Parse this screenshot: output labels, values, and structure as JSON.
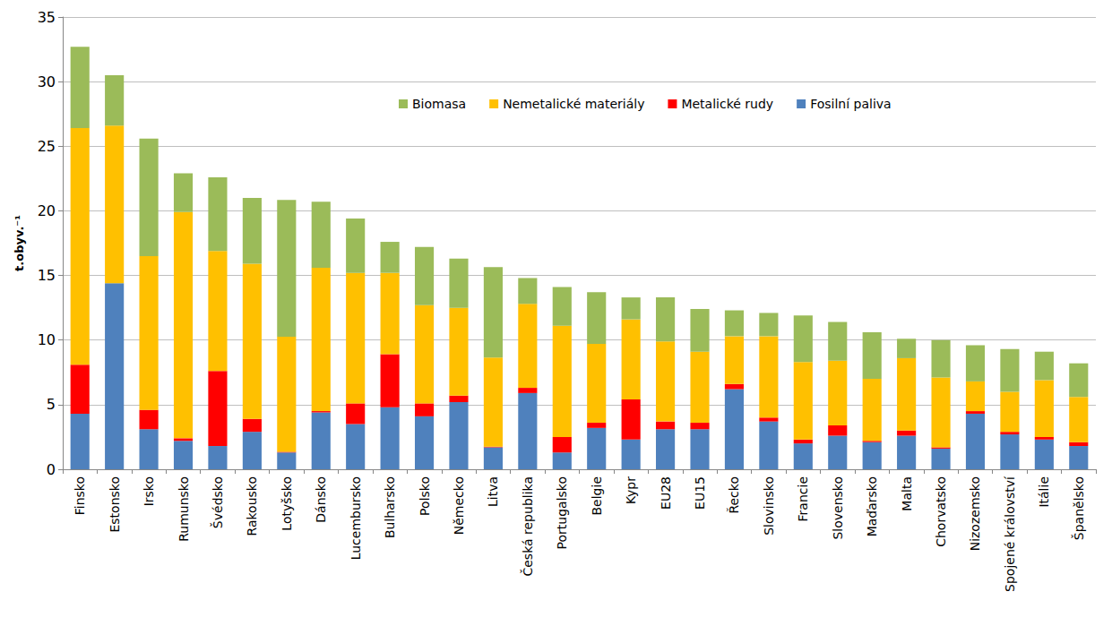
{
  "chart_data": {
    "type": "bar",
    "stacked": true,
    "grid": true,
    "legend": "top",
    "y_label": "t.obyv.⁻¹",
    "ylim": [
      0,
      35
    ],
    "yticks": [
      0,
      5,
      10,
      15,
      20,
      25,
      30,
      35
    ],
    "categories": [
      "Finsko",
      "Estonsko",
      "Irsko",
      "Rumunsko",
      "Švédsko",
      "Rakousko",
      "Lotyšsko",
      "Dánsko",
      "Lucembursko",
      "Bulharsko",
      "Polsko",
      "Německo",
      "Litva",
      "Česká republika",
      "Portugalsko",
      "Belgie",
      "Kypr",
      "EU28",
      "EU15",
      "Řecko",
      "Slovinsko",
      "Francie",
      "Slovensko",
      "Maďarsko",
      "Malta",
      "Chorvatsko",
      "Nizozemsko",
      "Spojené království",
      "Itálie",
      "Španělsko"
    ],
    "series": [
      {
        "name": "Fosilní paliva",
        "color": "#4f81bd",
        "values": [
          4.3,
          14.4,
          3.1,
          2.2,
          1.8,
          2.9,
          1.3,
          4.4,
          3.5,
          4.8,
          4.1,
          5.2,
          1.7,
          5.9,
          1.3,
          3.2,
          2.3,
          3.1,
          3.1,
          6.2,
          3.7,
          2.0,
          2.6,
          2.1,
          2.6,
          1.6,
          4.3,
          2.7,
          2.3,
          1.8
        ]
      },
      {
        "name": "Metalické rudy",
        "color": "#ff0000",
        "values": [
          3.8,
          0.0,
          1.5,
          0.2,
          5.8,
          1.0,
          0.05,
          0.1,
          1.6,
          4.1,
          1.0,
          0.5,
          0.05,
          0.4,
          1.2,
          0.4,
          3.1,
          0.6,
          0.5,
          0.4,
          0.3,
          0.3,
          0.8,
          0.1,
          0.4,
          0.1,
          0.2,
          0.2,
          0.2,
          0.3
        ]
      },
      {
        "name": "Nemetalické materiály",
        "color": "#ffc000",
        "values": [
          18.3,
          12.2,
          11.9,
          17.5,
          9.3,
          12.0,
          8.9,
          11.1,
          10.1,
          6.3,
          7.6,
          6.8,
          6.9,
          6.5,
          8.6,
          6.1,
          6.2,
          6.2,
          5.5,
          3.7,
          6.3,
          6.0,
          5.0,
          4.8,
          5.6,
          5.4,
          2.3,
          3.1,
          4.4,
          3.5
        ]
      },
      {
        "name": "Biomasa",
        "color": "#9bbb59",
        "values": [
          6.3,
          3.9,
          9.1,
          3.0,
          5.7,
          5.1,
          10.6,
          5.1,
          4.2,
          2.4,
          4.5,
          3.8,
          7.0,
          2.0,
          3.0,
          4.0,
          1.7,
          3.4,
          3.3,
          2.0,
          1.8,
          3.6,
          3.0,
          3.6,
          1.5,
          2.9,
          2.8,
          3.3,
          2.2,
          2.6
        ]
      }
    ]
  }
}
